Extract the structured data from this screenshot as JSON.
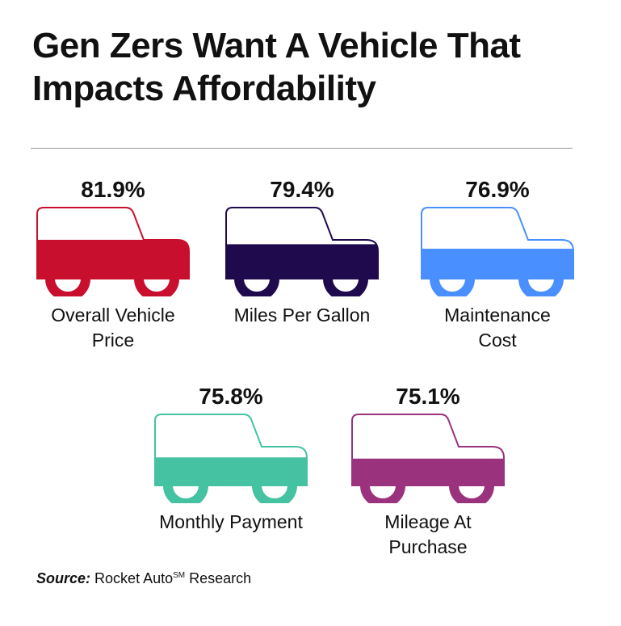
{
  "title": "Gen Zers Want A Vehicle That Impacts Affordability",
  "source": {
    "prefix": "Source:",
    "text_a": "Rocket Auto",
    "sup": "SM",
    "text_b": "Research"
  },
  "chart_data": {
    "type": "bar",
    "title": "Gen Zers Want A Vehicle That Impacts Affordability",
    "categories": [
      "Overall Vehicle Price",
      "Miles Per Gallon",
      "Maintenance Cost",
      "Monthly Payment",
      "Mileage At Purchase"
    ],
    "values": [
      81.9,
      79.4,
      76.9,
      75.8,
      75.1
    ],
    "value_labels": [
      "81.9%",
      "79.4%",
      "76.9%",
      "75.8%",
      "75.1%"
    ],
    "colors": [
      "#c8102e",
      "#1f0a4e",
      "#4a8fff",
      "#45c2a2",
      "#9a327d"
    ],
    "unit": "%",
    "ylim": [
      0,
      100
    ]
  },
  "items": [
    {
      "pct": "81.9%",
      "label_1": "Overall Vehicle",
      "label_2": "Price"
    },
    {
      "pct": "79.4%",
      "label_1": "Miles Per Gallon",
      "label_2": ""
    },
    {
      "pct": "76.9%",
      "label_1": "Maintenance",
      "label_2": "Cost"
    },
    {
      "pct": "75.8%",
      "label_1": "Monthly Payment",
      "label_2": ""
    },
    {
      "pct": "75.1%",
      "label_1": "Mileage At",
      "label_2": "Purchase"
    }
  ]
}
